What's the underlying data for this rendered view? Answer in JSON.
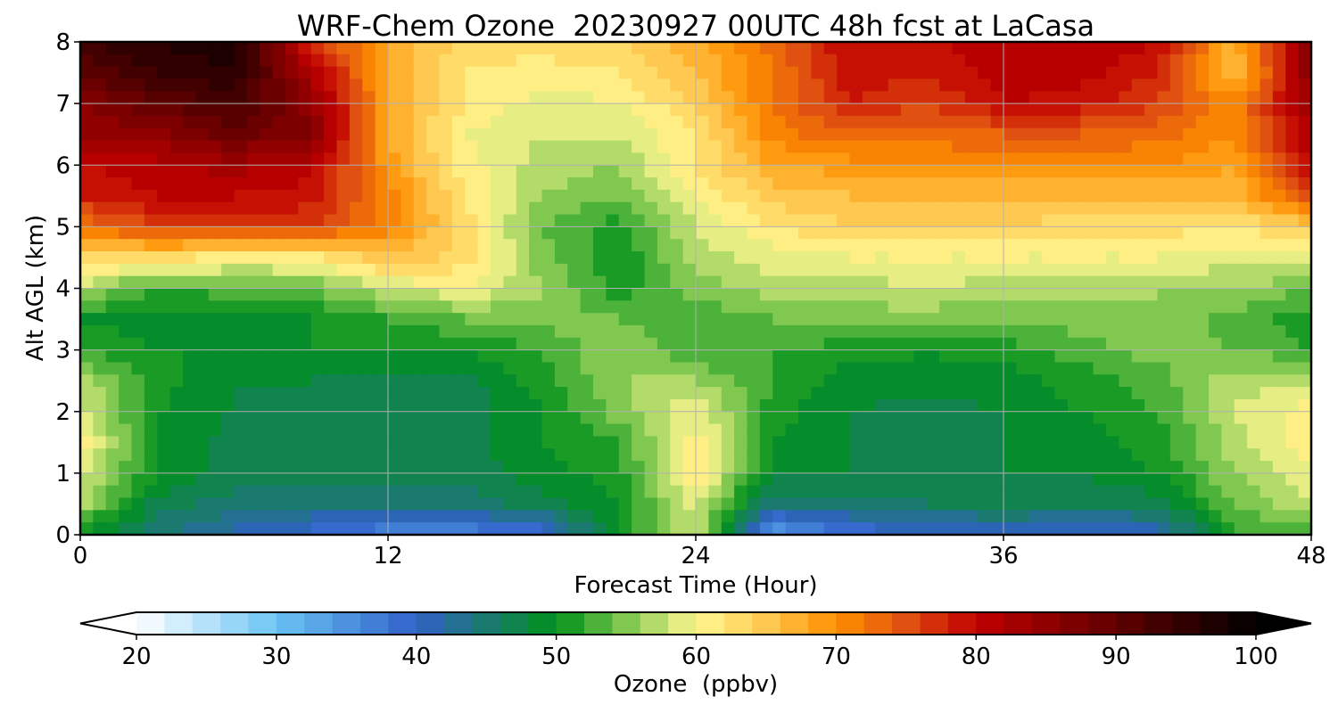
{
  "chart_data": {
    "type": "heatmap",
    "title": "WRF-Chem Ozone  20230927 00UTC 48h fcst at LaCasa",
    "xlabel": "Forecast Time (Hour)",
    "ylabel": "Alt AGL (km)",
    "xlim": [
      0,
      48
    ],
    "ylim": [
      0,
      8
    ],
    "xticks": [
      0,
      12,
      24,
      36,
      48
    ],
    "yticks": [
      0,
      1,
      2,
      3,
      4,
      5,
      6,
      7,
      8
    ],
    "grid": true,
    "colorbar": {
      "label": "Ozone  (ppbv)",
      "min": 20,
      "max": 100,
      "step": 2,
      "ticks": [
        20,
        30,
        40,
        50,
        60,
        70,
        80,
        90,
        100
      ],
      "extend": "both",
      "colors": [
        {
          "v": 20,
          "c": "#ffffff"
        },
        {
          "v": 30,
          "c": "#6ac4f4"
        },
        {
          "v": 40,
          "c": "#3060c8"
        },
        {
          "v": 45,
          "c": "#1a7a70"
        },
        {
          "v": 50,
          "c": "#00901a"
        },
        {
          "v": 55,
          "c": "#80c850"
        },
        {
          "v": 60,
          "c": "#fff890"
        },
        {
          "v": 65,
          "c": "#ffc850"
        },
        {
          "v": 70,
          "c": "#ff9000"
        },
        {
          "v": 75,
          "c": "#e05010"
        },
        {
          "v": 80,
          "c": "#c00000"
        },
        {
          "v": 90,
          "c": "#600000"
        },
        {
          "v": 100,
          "c": "#000000"
        }
      ]
    },
    "x_hours": [
      0,
      3,
      6,
      9,
      12,
      15,
      18,
      21,
      24,
      27,
      30,
      33,
      36,
      39,
      42,
      45,
      48
    ],
    "y_km": [
      0,
      0.5,
      1,
      1.5,
      2,
      2.5,
      3,
      3.5,
      4,
      4.5,
      5,
      5.5,
      6,
      6.5,
      7,
      7.5,
      8
    ],
    "ozone_ppbv": [
      [
        49,
        45,
        41,
        39,
        36,
        36,
        38,
        50,
        58,
        33,
        38,
        40,
        40,
        40,
        40,
        52,
        52
      ],
      [
        57,
        47,
        45,
        44,
        45,
        45,
        47,
        50,
        59,
        44,
        45,
        46,
        47,
        46,
        47,
        54,
        58
      ],
      [
        59,
        50,
        47,
        47,
        47,
        47,
        49,
        51,
        62,
        49,
        48,
        48,
        48,
        48,
        50,
        56,
        60
      ],
      [
        61,
        50,
        47,
        46,
        46,
        47,
        50,
        52,
        61,
        50,
        48,
        47,
        48,
        49,
        51,
        57,
        61
      ],
      [
        59,
        50,
        48,
        47,
        47,
        47,
        50,
        55,
        60,
        51,
        48,
        47,
        48,
        50,
        52,
        58,
        61
      ],
      [
        57,
        51,
        48,
        48,
        47,
        47,
        51,
        56,
        56,
        52,
        49,
        49,
        49,
        51,
        53,
        57,
        58
      ],
      [
        52,
        50,
        50,
        50,
        50,
        50,
        52,
        56,
        52,
        52,
        51,
        50,
        51,
        53,
        55,
        54,
        52
      ],
      [
        50,
        49,
        49,
        50,
        52,
        54,
        55,
        54,
        52,
        54,
        55,
        55,
        54,
        55,
        56,
        53,
        51
      ],
      [
        57,
        52,
        53,
        54,
        58,
        60,
        56,
        51,
        55,
        57,
        57,
        58,
        57,
        57,
        56,
        56,
        54
      ],
      [
        64,
        63,
        61,
        61,
        66,
        63,
        55,
        50,
        57,
        59,
        60,
        60,
        60,
        60,
        60,
        59,
        60
      ],
      [
        72,
        76,
        77,
        76,
        71,
        63,
        54,
        51,
        58,
        62,
        64,
        64,
        64,
        63,
        63,
        62,
        64
      ],
      [
        78,
        80,
        80,
        79,
        71,
        62,
        56,
        54,
        60,
        65,
        66,
        66,
        66,
        66,
        66,
        66,
        76
      ],
      [
        80,
        81,
        83,
        81,
        69,
        61,
        57,
        56,
        62,
        68,
        69,
        70,
        70,
        70,
        70,
        68,
        80
      ],
      [
        84,
        85,
        89,
        86,
        68,
        60,
        58,
        58,
        62,
        71,
        74,
        73,
        74,
        74,
        73,
        70,
        82
      ],
      [
        86,
        90,
        93,
        85,
        68,
        62,
        59,
        60,
        64,
        72,
        78,
        76,
        80,
        79,
        76,
        71,
        84
      ],
      [
        90,
        94,
        96,
        82,
        68,
        62,
        61,
        62,
        66,
        72,
        79,
        78,
        81,
        81,
        78,
        65,
        86
      ],
      [
        94,
        96,
        98,
        77,
        68,
        63,
        63,
        64,
        67,
        73,
        80,
        79,
        82,
        82,
        80,
        67,
        86
      ]
    ]
  }
}
